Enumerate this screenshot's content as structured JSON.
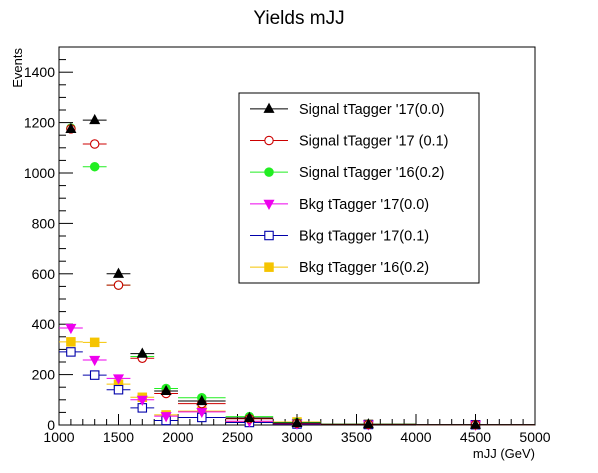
{
  "chart_data": {
    "type": "scatter",
    "title": "Yields mJJ",
    "xlabel": "mJJ (GeV)",
    "ylabel": "Events",
    "xlim": [
      1000,
      5000
    ],
    "ylim": [
      0,
      1500
    ],
    "xticks": [
      "1000",
      "1500",
      "2000",
      "2500",
      "3000",
      "3500",
      "4000",
      "4500",
      "5000"
    ],
    "yticks": [
      "0",
      "200",
      "400",
      "600",
      "800",
      "1000",
      "1200",
      "1400"
    ],
    "grid": false,
    "legend_position": "top-right",
    "series": [
      {
        "name": "Signal tTagger '17(0.0)",
        "color": "#000000",
        "marker": "triangle-up",
        "filled": true,
        "points": [
          {
            "x": 1100,
            "y": 1175,
            "xerr": 0
          },
          {
            "x": 1300,
            "y": 1210,
            "xerr": 100
          },
          {
            "x": 1500,
            "y": 600,
            "xerr": 100
          },
          {
            "x": 1700,
            "y": 283,
            "xerr": 100
          },
          {
            "x": 1900,
            "y": 135,
            "xerr": 100
          },
          {
            "x": 2200,
            "y": 95,
            "xerr": 200
          },
          {
            "x": 2600,
            "y": 28,
            "xerr": 200
          },
          {
            "x": 3000,
            "y": 8,
            "xerr": 200
          },
          {
            "x": 3600,
            "y": 3,
            "xerr": 400
          },
          {
            "x": 4500,
            "y": 1,
            "xerr": 500
          }
        ]
      },
      {
        "name": "Signal tTagger '17 (0.1)",
        "color": "#cc0000",
        "marker": "circle",
        "filled": false,
        "points": [
          {
            "x": 1100,
            "y": 1175,
            "xerr": 0
          },
          {
            "x": 1300,
            "y": 1115,
            "xerr": 100
          },
          {
            "x": 1500,
            "y": 555,
            "xerr": 100
          },
          {
            "x": 1700,
            "y": 265,
            "xerr": 100
          },
          {
            "x": 1900,
            "y": 125,
            "xerr": 100
          },
          {
            "x": 2200,
            "y": 85,
            "xerr": 200
          },
          {
            "x": 2600,
            "y": 25,
            "xerr": 200
          },
          {
            "x": 3000,
            "y": 7,
            "xerr": 200
          },
          {
            "x": 3600,
            "y": 2,
            "xerr": 400
          },
          {
            "x": 4500,
            "y": 1,
            "xerr": 500
          }
        ]
      },
      {
        "name": "Signal tTagger '16(0.2)",
        "color": "#22ee22",
        "marker": "circle",
        "filled": true,
        "points": [
          {
            "x": 1100,
            "y": 1178,
            "xerr": 0
          },
          {
            "x": 1300,
            "y": 1025,
            "xerr": 100
          },
          {
            "x": 1500,
            "y": 555,
            "xerr": 100
          },
          {
            "x": 1700,
            "y": 272,
            "xerr": 100
          },
          {
            "x": 1900,
            "y": 145,
            "xerr": 100
          },
          {
            "x": 2200,
            "y": 108,
            "xerr": 200
          },
          {
            "x": 2600,
            "y": 33,
            "xerr": 200
          },
          {
            "x": 3000,
            "y": 10,
            "xerr": 200
          },
          {
            "x": 3600,
            "y": 3,
            "xerr": 400
          },
          {
            "x": 4500,
            "y": 1,
            "xerr": 500
          }
        ]
      },
      {
        "name": "Bkg tTagger '17(0.0)",
        "color": "#ee00ee",
        "marker": "triangle-down",
        "filled": true,
        "points": [
          {
            "x": 1100,
            "y": 385,
            "xerr": 100
          },
          {
            "x": 1300,
            "y": 258,
            "xerr": 100
          },
          {
            "x": 1500,
            "y": 185,
            "xerr": 100
          },
          {
            "x": 1700,
            "y": 100,
            "xerr": 100
          },
          {
            "x": 1900,
            "y": 35,
            "xerr": 100
          },
          {
            "x": 2200,
            "y": 52,
            "xerr": 200
          },
          {
            "x": 2600,
            "y": 15,
            "xerr": 200
          },
          {
            "x": 3000,
            "y": 5,
            "xerr": 200
          },
          {
            "x": 3600,
            "y": 2,
            "xerr": 400
          },
          {
            "x": 4500,
            "y": 1,
            "xerr": 500
          }
        ]
      },
      {
        "name": "Bkg tTagger '17(0.1)",
        "color": "#0000aa",
        "marker": "square",
        "filled": false,
        "points": [
          {
            "x": 1100,
            "y": 290,
            "xerr": 100
          },
          {
            "x": 1300,
            "y": 198,
            "xerr": 100
          },
          {
            "x": 1500,
            "y": 140,
            "xerr": 100
          },
          {
            "x": 1700,
            "y": 68,
            "xerr": 100
          },
          {
            "x": 1900,
            "y": 18,
            "xerr": 100
          },
          {
            "x": 2200,
            "y": 30,
            "xerr": 200
          },
          {
            "x": 2600,
            "y": 10,
            "xerr": 200
          },
          {
            "x": 3000,
            "y": 4,
            "xerr": 200
          },
          {
            "x": 3600,
            "y": 2,
            "xerr": 400
          },
          {
            "x": 4500,
            "y": 1,
            "xerr": 500
          }
        ]
      },
      {
        "name": "Bkg tTagger '16(0.2)",
        "color": "#f5c400",
        "marker": "square",
        "filled": true,
        "points": [
          {
            "x": 1100,
            "y": 330,
            "xerr": 100
          },
          {
            "x": 1300,
            "y": 328,
            "xerr": 100
          },
          {
            "x": 1500,
            "y": 162,
            "xerr": 100
          },
          {
            "x": 1700,
            "y": 110,
            "xerr": 100
          },
          {
            "x": 1900,
            "y": 40,
            "xerr": 100
          },
          {
            "x": 2200,
            "y": 55,
            "xerr": 200
          },
          {
            "x": 2600,
            "y": 12,
            "xerr": 200
          },
          {
            "x": 3000,
            "y": 12,
            "xerr": 200
          },
          {
            "x": 3600,
            "y": 3,
            "xerr": 400
          },
          {
            "x": 4500,
            "y": 1,
            "xerr": 500
          }
        ]
      }
    ]
  }
}
